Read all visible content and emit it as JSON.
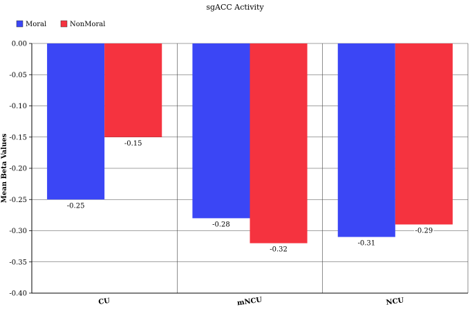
{
  "chart_data": {
    "type": "bar",
    "title": "sgACC Activity",
    "xlabel": "",
    "ylabel": "Mean Beta Values",
    "categories": [
      "CU",
      "mNCU",
      "NCU"
    ],
    "series": [
      {
        "name": "Moral",
        "color": "#3b46f5",
        "values": [
          -0.25,
          -0.28,
          -0.31
        ],
        "labels": [
          "-0.25",
          "-0.28",
          "-0.31"
        ]
      },
      {
        "name": "NonMoral",
        "color": "#f5333f",
        "values": [
          -0.15,
          -0.32,
          -0.29
        ],
        "labels": [
          "-0.15",
          "-0.32",
          "-0.29"
        ]
      }
    ],
    "ylim": [
      -0.4,
      0.0
    ],
    "yticks": [
      "0.00",
      "-0.05",
      "-0.10",
      "-0.15",
      "-0.20",
      "-0.25",
      "-0.30",
      "-0.35",
      "-0.40"
    ],
    "ytick_values": [
      0.0,
      -0.05,
      -0.1,
      -0.15,
      -0.2,
      -0.25,
      -0.3,
      -0.35,
      -0.4
    ],
    "grid": true,
    "legend_position": "top-left"
  }
}
